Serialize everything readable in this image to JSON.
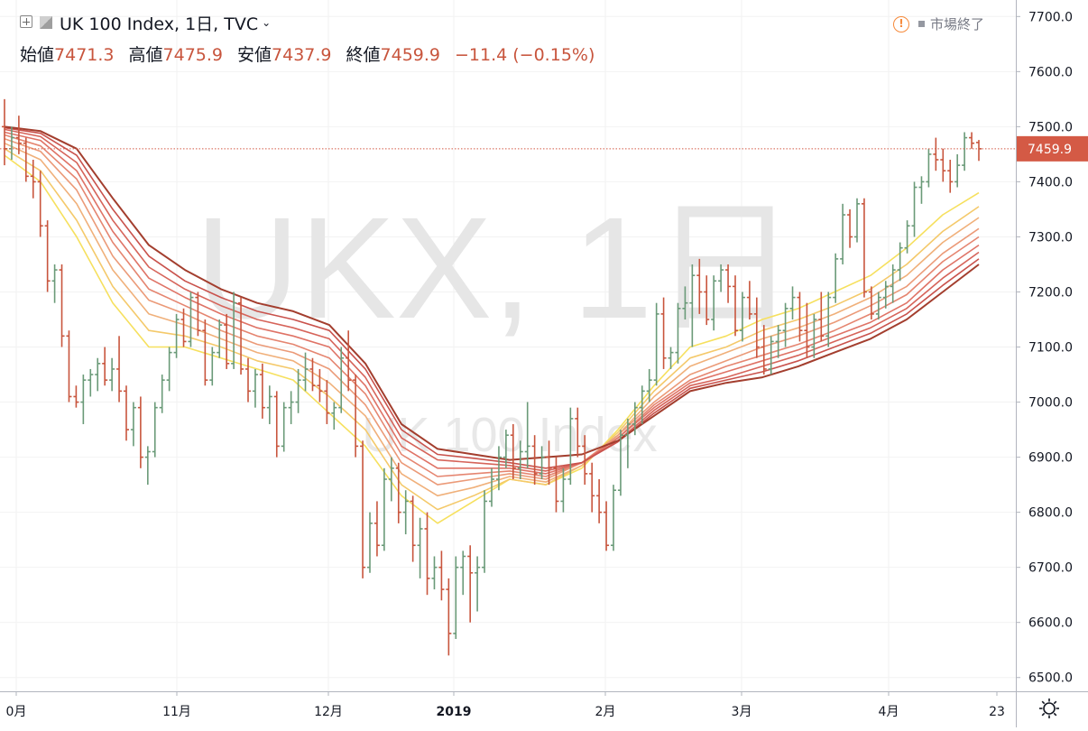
{
  "header": {
    "symbol_title": "UK 100 Index, 1日, TVC",
    "status_text": "市場終了",
    "ohlc": {
      "open_label": "始値",
      "open_value": "7471.3",
      "high_label": "高値",
      "high_value": "7475.9",
      "low_label": "安値",
      "low_value": "7437.9",
      "close_label": "終値",
      "close_value": "7459.9",
      "change": "−11.4 (−0.15%)"
    }
  },
  "watermark": {
    "symbol": "UKX, 1日",
    "description": "UK 100 Index"
  },
  "colors": {
    "up": "#6a9a78",
    "down": "#c8553d",
    "last_price_tag": "#d45a45",
    "ribbon": [
      "#f6e05e",
      "#f4c96a",
      "#f0b07a",
      "#eb9a78",
      "#e58570",
      "#df7366",
      "#d6645a",
      "#c9524c",
      "#a33e2e"
    ]
  },
  "chart_data": {
    "type": "candlestick",
    "symbol": "UKX",
    "interval": "1日",
    "last_price": 7459.9,
    "y_axis": {
      "min": 6475,
      "max": 7730,
      "ticks": [
        6500.0,
        6600.0,
        6700.0,
        6800.0,
        6900.0,
        7000.0,
        7100.0,
        7200.0,
        7300.0,
        7400.0,
        7500.0,
        7600.0,
        7700.0
      ]
    },
    "x_axis_labels": [
      "0月",
      "11月",
      "12月",
      "2019",
      "2月",
      "3月",
      "4月",
      "23"
    ],
    "bars": [
      [
        7500,
        7550,
        7430,
        7460
      ],
      [
        7460,
        7500,
        7440,
        7480
      ],
      [
        7480,
        7520,
        7450,
        7470
      ],
      [
        7470,
        7480,
        7400,
        7410
      ],
      [
        7410,
        7440,
        7370,
        7400
      ],
      [
        7400,
        7420,
        7300,
        7320
      ],
      [
        7320,
        7330,
        7200,
        7220
      ],
      [
        7220,
        7250,
        7180,
        7240
      ],
      [
        7240,
        7250,
        7100,
        7120
      ],
      [
        7120,
        7130,
        7000,
        7010
      ],
      [
        7010,
        7030,
        6990,
        7000
      ],
      [
        7000,
        7050,
        6960,
        7040
      ],
      [
        7040,
        7060,
        7010,
        7050
      ],
      [
        7050,
        7080,
        7020,
        7070
      ],
      [
        7070,
        7100,
        7030,
        7040
      ],
      [
        7040,
        7080,
        7020,
        7060
      ],
      [
        7060,
        7120,
        7000,
        7020
      ],
      [
        7020,
        7030,
        6930,
        6950
      ],
      [
        6950,
        7000,
        6920,
        6990
      ],
      [
        6990,
        7010,
        6880,
        6900
      ],
      [
        6900,
        6920,
        6850,
        6910
      ],
      [
        6910,
        7000,
        6900,
        6990
      ],
      [
        6990,
        7050,
        6980,
        7040
      ],
      [
        7040,
        7100,
        7020,
        7090
      ],
      [
        7090,
        7160,
        7080,
        7150
      ],
      [
        7150,
        7170,
        7100,
        7110
      ],
      [
        7110,
        7200,
        7100,
        7190
      ],
      [
        7190,
        7200,
        7120,
        7130
      ],
      [
        7130,
        7150,
        7030,
        7040
      ],
      [
        7040,
        7100,
        7030,
        7090
      ],
      [
        7090,
        7150,
        7080,
        7140
      ],
      [
        7140,
        7160,
        7060,
        7070
      ],
      [
        7070,
        7200,
        7060,
        7180
      ],
      [
        7180,
        7190,
        7050,
        7060
      ],
      [
        7060,
        7080,
        7000,
        7020
      ],
      [
        7020,
        7060,
        6990,
        7050
      ],
      [
        7050,
        7070,
        6970,
        6990
      ],
      [
        6990,
        7030,
        6960,
        7010
      ],
      [
        7010,
        7020,
        6900,
        6920
      ],
      [
        6920,
        7000,
        6910,
        6990
      ],
      [
        6990,
        7020,
        6960,
        7000
      ],
      [
        7000,
        7060,
        6980,
        7040
      ],
      [
        7040,
        7090,
        7020,
        7060
      ],
      [
        7060,
        7080,
        7020,
        7030
      ],
      [
        7030,
        7060,
        7000,
        7020
      ],
      [
        7020,
        7040,
        6960,
        6980
      ],
      [
        6980,
        7000,
        6950,
        6990
      ],
      [
        6990,
        7100,
        6980,
        7080
      ],
      [
        7080,
        7130,
        7020,
        7040
      ],
      [
        7040,
        7050,
        6900,
        6920
      ],
      [
        6920,
        6930,
        6680,
        6700
      ],
      [
        6700,
        6800,
        6690,
        6780
      ],
      [
        6780,
        6820,
        6720,
        6740
      ],
      [
        6740,
        6880,
        6730,
        6860
      ],
      [
        6860,
        6900,
        6820,
        6880
      ],
      [
        6880,
        6890,
        6780,
        6800
      ],
      [
        6800,
        6840,
        6760,
        6820
      ],
      [
        6820,
        6830,
        6710,
        6740
      ],
      [
        6740,
        6790,
        6680,
        6770
      ],
      [
        6770,
        6800,
        6650,
        6680
      ],
      [
        6680,
        6720,
        6660,
        6700
      ],
      [
        6700,
        6730,
        6640,
        6660
      ],
      [
        6660,
        6680,
        6540,
        6580
      ],
      [
        6580,
        6720,
        6570,
        6700
      ],
      [
        6700,
        6730,
        6650,
        6720
      ],
      [
        6720,
        6740,
        6600,
        6690
      ],
      [
        6690,
        6720,
        6620,
        6700
      ],
      [
        6700,
        6840,
        6690,
        6820
      ],
      [
        6820,
        6880,
        6810,
        6860
      ],
      [
        6860,
        6920,
        6840,
        6900
      ],
      [
        6900,
        6950,
        6880,
        6940
      ],
      [
        6940,
        6960,
        6860,
        6880
      ],
      [
        6880,
        6930,
        6860,
        6910
      ],
      [
        6910,
        7000,
        6880,
        6920
      ],
      [
        6920,
        6940,
        6850,
        6870
      ],
      [
        6870,
        6920,
        6860,
        6900
      ],
      [
        6900,
        6930,
        6850,
        6880
      ],
      [
        6880,
        6900,
        6800,
        6820
      ],
      [
        6820,
        6880,
        6800,
        6860
      ],
      [
        6860,
        6990,
        6850,
        6970
      ],
      [
        6970,
        6990,
        6900,
        6920
      ],
      [
        6920,
        6940,
        6850,
        6870
      ],
      [
        6870,
        6890,
        6800,
        6830
      ],
      [
        6830,
        6860,
        6780,
        6800
      ],
      [
        6800,
        6820,
        6730,
        6740
      ],
      [
        6740,
        6850,
        6730,
        6840
      ],
      [
        6840,
        6950,
        6830,
        6940
      ],
      [
        6940,
        6970,
        6880,
        6960
      ],
      [
        6960,
        7000,
        6940,
        6990
      ],
      [
        6990,
        7030,
        6960,
        7020
      ],
      [
        7020,
        7060,
        7000,
        7040
      ],
      [
        7040,
        7180,
        7030,
        7160
      ],
      [
        7160,
        7190,
        7060,
        7080
      ],
      [
        7080,
        7100,
        7060,
        7090
      ],
      [
        7090,
        7180,
        7070,
        7170
      ],
      [
        7170,
        7210,
        7150,
        7180
      ],
      [
        7180,
        7250,
        7100,
        7230
      ],
      [
        7230,
        7260,
        7160,
        7200
      ],
      [
        7200,
        7230,
        7140,
        7150
      ],
      [
        7150,
        7230,
        7130,
        7220
      ],
      [
        7220,
        7250,
        7200,
        7240
      ],
      [
        7240,
        7250,
        7180,
        7210
      ],
      [
        7210,
        7230,
        7120,
        7130
      ],
      [
        7130,
        7200,
        7110,
        7190
      ],
      [
        7190,
        7220,
        7150,
        7160
      ],
      [
        7160,
        7190,
        7080,
        7100
      ],
      [
        7100,
        7140,
        7050,
        7060
      ],
      [
        7060,
        7120,
        7050,
        7110
      ],
      [
        7110,
        7140,
        7080,
        7130
      ],
      [
        7130,
        7180,
        7100,
        7170
      ],
      [
        7170,
        7210,
        7150,
        7190
      ],
      [
        7190,
        7200,
        7110,
        7130
      ],
      [
        7130,
        7180,
        7080,
        7100
      ],
      [
        7100,
        7160,
        7080,
        7150
      ],
      [
        7150,
        7200,
        7110,
        7120
      ],
      [
        7120,
        7200,
        7100,
        7190
      ],
      [
        7190,
        7270,
        7180,
        7260
      ],
      [
        7260,
        7360,
        7250,
        7340
      ],
      [
        7340,
        7350,
        7280,
        7300
      ],
      [
        7300,
        7370,
        7290,
        7360
      ],
      [
        7360,
        7370,
        7190,
        7200
      ],
      [
        7200,
        7210,
        7150,
        7160
      ],
      [
        7160,
        7200,
        7150,
        7190
      ],
      [
        7190,
        7220,
        7170,
        7210
      ],
      [
        7210,
        7250,
        7180,
        7240
      ],
      [
        7240,
        7290,
        7220,
        7280
      ],
      [
        7280,
        7330,
        7270,
        7320
      ],
      [
        7320,
        7400,
        7300,
        7390
      ],
      [
        7390,
        7410,
        7360,
        7400
      ],
      [
        7400,
        7460,
        7390,
        7450
      ],
      [
        7450,
        7480,
        7420,
        7440
      ],
      [
        7440,
        7460,
        7400,
        7420
      ],
      [
        7420,
        7440,
        7380,
        7400
      ],
      [
        7400,
        7450,
        7390,
        7430
      ],
      [
        7430,
        7490,
        7420,
        7480
      ],
      [
        7480,
        7490,
        7460,
        7470
      ],
      [
        7471.3,
        7475.9,
        7437.9,
        7459.9
      ]
    ],
    "ribbon": {
      "type": "line",
      "series": [
        {
          "values": [
            7448,
            7400,
            7300,
            7180,
            7100,
            7100,
            7080,
            7060,
            7040,
            6980,
            6920,
            6830,
            6780,
            6820,
            6860,
            6850,
            6880,
            6950,
            7030,
            7100,
            7120,
            7150,
            7170,
            7200,
            7230,
            7280,
            7340,
            7380
          ]
        },
        {
          "values": [
            7460,
            7420,
            7330,
            7210,
            7130,
            7120,
            7100,
            7075,
            7060,
            7010,
            6950,
            6850,
            6805,
            6830,
            6860,
            6850,
            6885,
            6945,
            7020,
            7080,
            7100,
            7130,
            7150,
            7175,
            7205,
            7250,
            7310,
            7355
          ]
        },
        {
          "values": [
            7470,
            7440,
            7360,
            7240,
            7160,
            7140,
            7115,
            7090,
            7075,
            7035,
            6975,
            6870,
            6830,
            6845,
            6865,
            6855,
            6885,
            6940,
            7010,
            7065,
            7090,
            7115,
            7135,
            7160,
            7190,
            7230,
            7290,
            7335
          ]
        },
        {
          "values": [
            7478,
            7455,
            7385,
            7265,
            7185,
            7160,
            7130,
            7105,
            7090,
            7060,
            6995,
            6890,
            6850,
            6860,
            6870,
            6860,
            6890,
            6940,
            7000,
            7050,
            7075,
            7100,
            7120,
            7145,
            7175,
            7210,
            7270,
            7315
          ]
        },
        {
          "values": [
            7485,
            7465,
            7405,
            7290,
            7205,
            7175,
            7145,
            7120,
            7105,
            7080,
            7015,
            6905,
            6865,
            6870,
            6875,
            6865,
            6890,
            6935,
            6995,
            7040,
            7065,
            7085,
            7105,
            7130,
            7160,
            7195,
            7255,
            7300
          ]
        },
        {
          "values": [
            7490,
            7475,
            7420,
            7310,
            7225,
            7190,
            7160,
            7135,
            7120,
            7100,
            7030,
            6920,
            6880,
            6880,
            6880,
            6870,
            6890,
            6935,
            6990,
            7035,
            7055,
            7075,
            7095,
            7120,
            7145,
            7180,
            7240,
            7285
          ]
        },
        {
          "values": [
            7495,
            7482,
            7435,
            7330,
            7245,
            7205,
            7175,
            7150,
            7135,
            7115,
            7045,
            6935,
            6895,
            6890,
            6885,
            6875,
            6890,
            6930,
            6985,
            7030,
            7045,
            7065,
            7085,
            7110,
            7135,
            7170,
            7225,
            7272
          ]
        },
        {
          "values": [
            7498,
            7488,
            7448,
            7350,
            7265,
            7220,
            7190,
            7165,
            7150,
            7130,
            7060,
            6950,
            6905,
            6898,
            6890,
            6880,
            6890,
            6928,
            6980,
            7025,
            7040,
            7055,
            7075,
            7100,
            7125,
            7160,
            7212,
            7260
          ]
        },
        {
          "values": [
            7500,
            7492,
            7460,
            7370,
            7285,
            7240,
            7205,
            7180,
            7165,
            7140,
            7070,
            6960,
            6915,
            6905,
            6895,
            6900,
            6905,
            6930,
            6975,
            7020,
            7035,
            7045,
            7065,
            7090,
            7115,
            7150,
            7200,
            7250
          ]
        }
      ]
    }
  }
}
